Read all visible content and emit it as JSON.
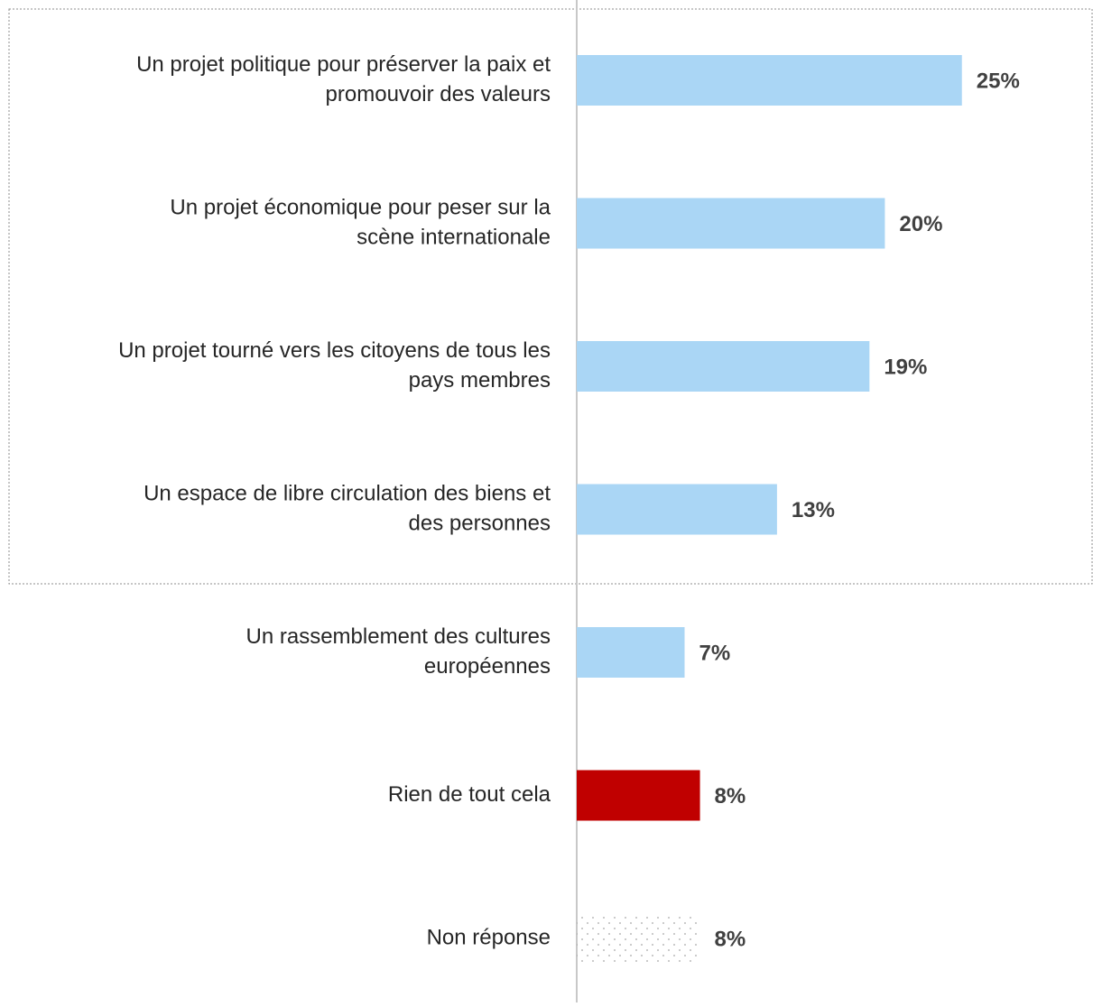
{
  "chart_data": {
    "type": "bar",
    "orientation": "horizontal",
    "categories": [
      [
        "Un projet politique pour préserver la paix et",
        "promouvoir des valeurs"
      ],
      [
        "Un projet économique pour peser sur la",
        "scène internationale"
      ],
      [
        "Un projet tourné vers les citoyens de tous les",
        "pays membres"
      ],
      [
        "Un espace de libre circulation des biens et",
        "des personnes"
      ],
      [
        "Un rassemblement des cultures",
        "européennes"
      ],
      [
        "Rien de tout cela"
      ],
      [
        "Non réponse"
      ]
    ],
    "values": [
      25,
      20,
      19,
      13,
      7,
      8,
      8
    ],
    "value_labels": [
      "25%",
      "20%",
      "19%",
      "13%",
      "7%",
      "8%",
      "8%"
    ],
    "colors": [
      "#aad6f5",
      "#aad6f5",
      "#aad6f5",
      "#aad6f5",
      "#aad6f5",
      "#c00000",
      "#a6a6a6"
    ],
    "fills": [
      "solid",
      "solid",
      "solid",
      "solid",
      "solid",
      "solid",
      "dotted"
    ]
  }
}
